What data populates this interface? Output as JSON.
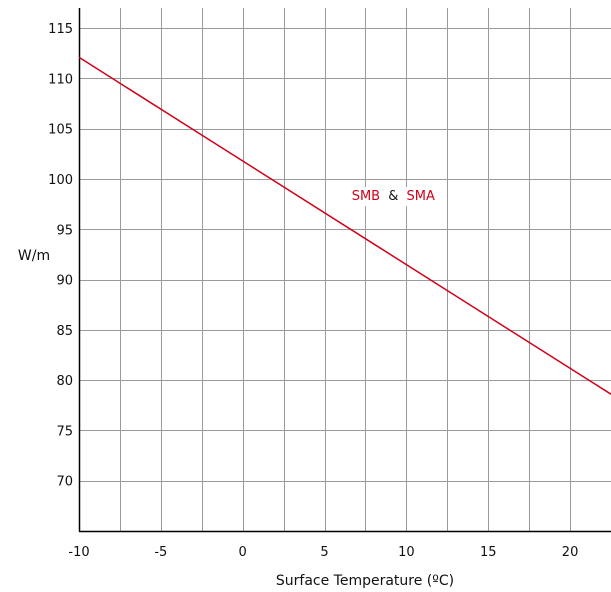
{
  "chart_data": {
    "type": "line",
    "xlabel": "Surface Temperature (ºC)",
    "ylabel": "W/m",
    "xlim": [
      -10,
      22.5
    ],
    "ylim": [
      65,
      117
    ],
    "x_ticks": [
      -10,
      -5,
      0,
      5,
      10,
      15,
      20
    ],
    "y_ticks": [
      70,
      75,
      80,
      85,
      90,
      95,
      100,
      105,
      110,
      115
    ],
    "grid": true,
    "series": [
      {
        "points": [
          [
            -10,
            112.1
          ],
          [
            22.5,
            78.6
          ]
        ],
        "color": "#d0021b"
      }
    ],
    "annotation": {
      "part1": "SMB",
      "sep": "&",
      "part2": "SMA",
      "x": 9.2,
      "y": 98.4,
      "color_series": "#d0021b",
      "color_sep": "#111111"
    }
  }
}
